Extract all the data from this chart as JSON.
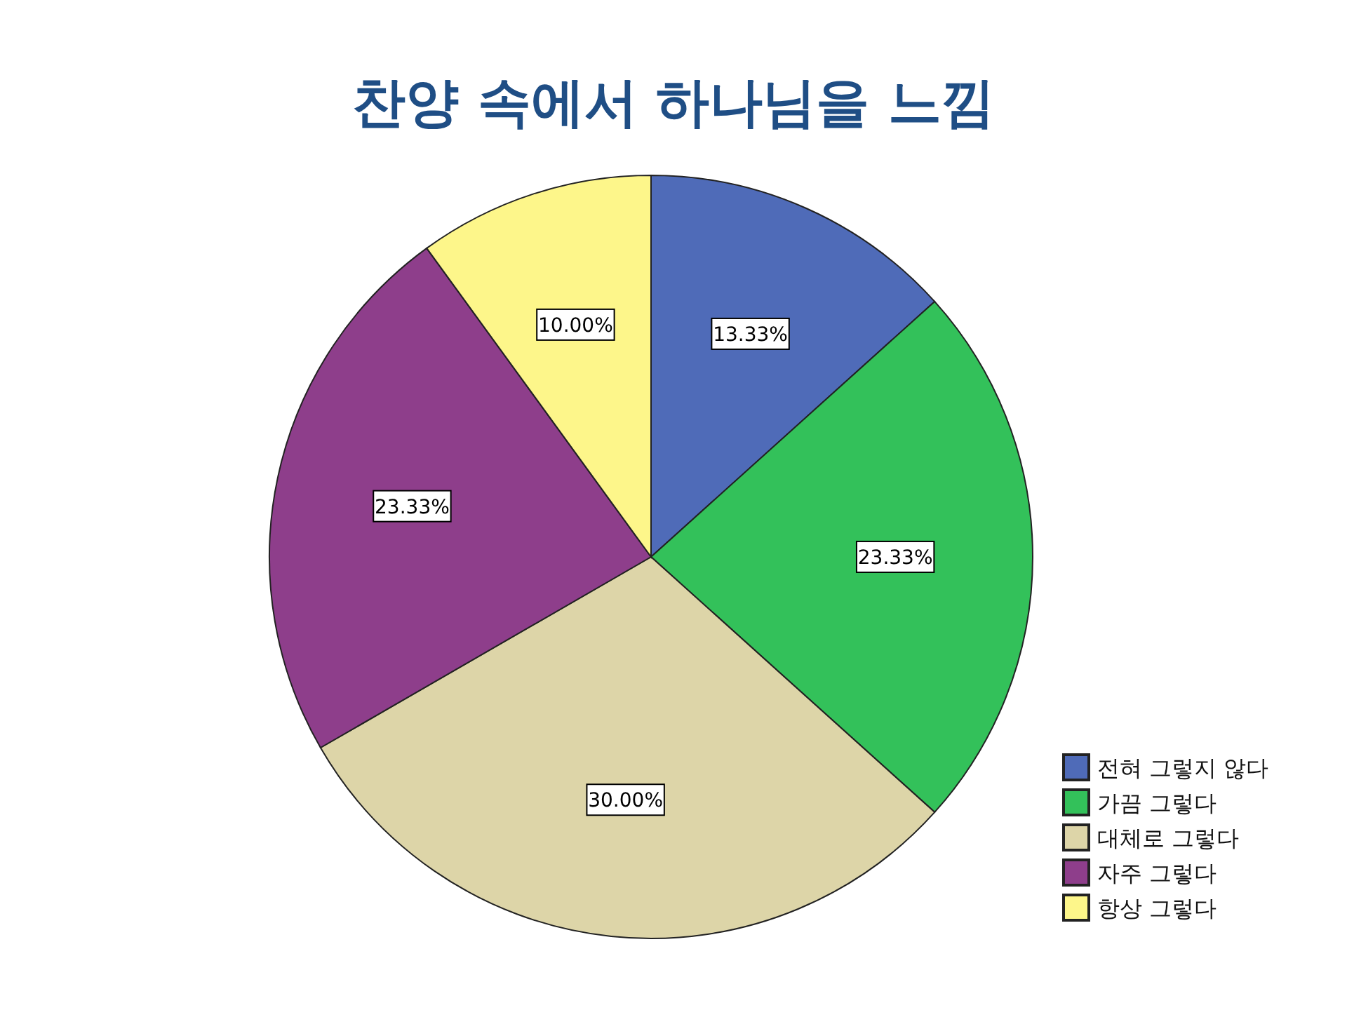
{
  "chart_data": {
    "type": "pie",
    "title": "찬양 속에서 하나님을 느낌",
    "categories": [
      "전혀 그렇지 않다",
      "가끔 그렇다",
      "대체로 그렇다",
      "자주 그렇다",
      "항상 그렇다"
    ],
    "values": [
      13.33,
      23.33,
      30.0,
      23.33,
      10.0
    ],
    "value_labels": [
      "13.33%",
      "23.33%",
      "30.00%",
      "23.33%",
      "10.00%"
    ],
    "colors": [
      "#4f6bb8",
      "#33c15a",
      "#ddd5a8",
      "#8e3e8b",
      "#fdf68a"
    ],
    "legend": "bottom right"
  }
}
